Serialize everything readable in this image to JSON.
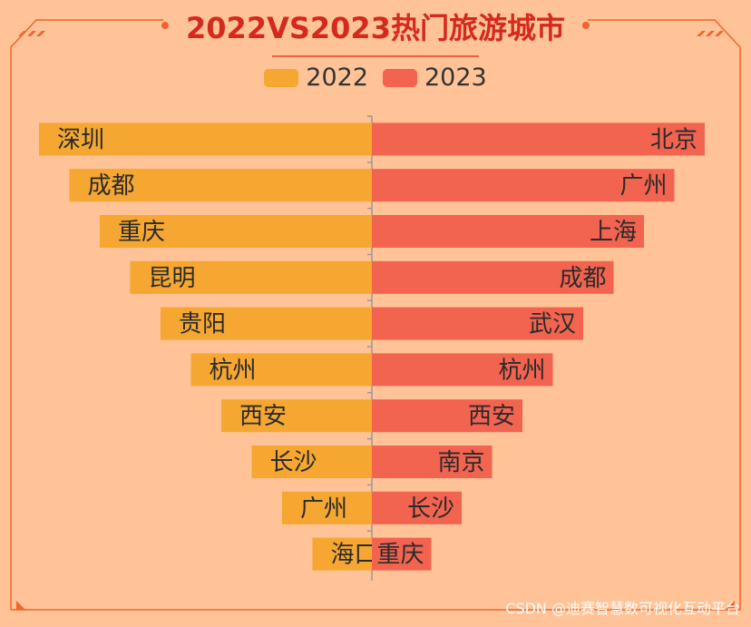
{
  "chart_data": {
    "type": "bar",
    "title": "2022VS2023热门旅游城市",
    "legend": [
      "2022",
      "2023"
    ],
    "legend_position": "top-center",
    "series": [
      {
        "name": "2022",
        "color": "#f5a731",
        "values": [
          10,
          9,
          8,
          7,
          6,
          5,
          4,
          3,
          2,
          1
        ],
        "labels": [
          "深圳",
          "成都",
          "重庆",
          "昆明",
          "贵阳",
          "杭州",
          "西安",
          "长沙",
          "广州",
          "海口"
        ]
      },
      {
        "name": "2023",
        "color": "#f26350",
        "values": [
          10,
          9,
          8,
          7,
          6,
          5,
          4,
          3,
          2,
          1
        ],
        "labels": [
          "北京",
          "广州",
          "上海",
          "成都",
          "武汉",
          "杭州",
          "西安",
          "南京",
          "长沙",
          "重庆"
        ]
      }
    ],
    "ranks": [
      1,
      2,
      3,
      4,
      5,
      6,
      7,
      8,
      9,
      10
    ]
  },
  "watermark": "CSDN @迪赛智慧数可视化互动平台",
  "colors": {
    "background": "#ffc397",
    "frame": "#f0642f",
    "title": "#d42a1e"
  }
}
